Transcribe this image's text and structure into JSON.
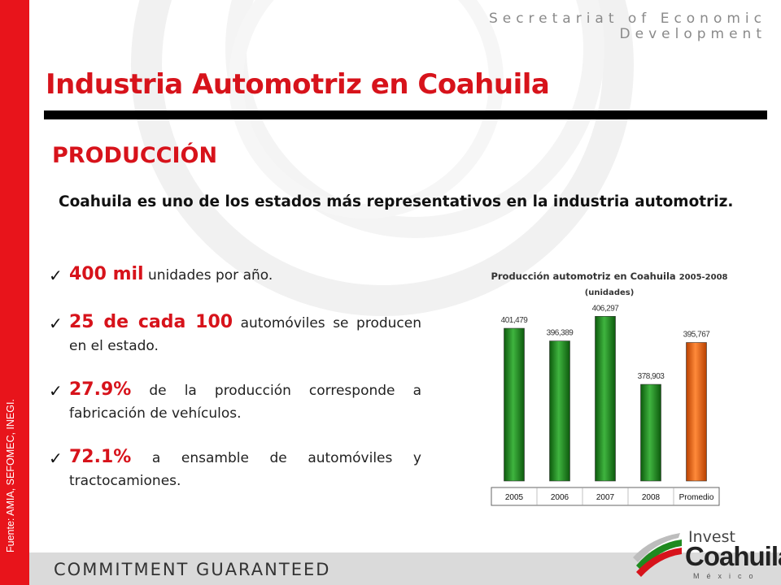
{
  "header": {
    "org_line1": "Secretariat of Economic",
    "org_line2": "Development"
  },
  "title": "Industria Automotriz en Coahuila",
  "section": "PRODUCCIÓN",
  "intro": "Coahuila es uno de los estados más representativos en la industria automotriz.",
  "bullets": [
    {
      "highlight": "400 mil",
      "text": " unidades por año."
    },
    {
      "highlight": "25 de cada 100",
      "text": " automóviles se producen en el estado."
    },
    {
      "highlight": "27.9%",
      "text": " de la producción corresponde a fabricación de vehículos."
    },
    {
      "highlight": "72.1%",
      "text": " a ensamble de automóviles y tractocamiones."
    }
  ],
  "source": "Fuente: AMIA, SEFOMEC, INEGI.",
  "footer": {
    "tagline": "COMMITMENT GUARANTEED"
  },
  "logo": {
    "line1": "Invest",
    "line2": "Coahuila",
    "line3": "México"
  },
  "colors": {
    "accent_red": "#d7131b",
    "bar_green": "#1f8a1f",
    "bar_orange": "#f06010"
  },
  "chart_data": {
    "type": "bar",
    "title": "Producción automotriz en Coahuila",
    "title_years": "2005-2008",
    "subtitle": "(unidades)",
    "categories": [
      "2005",
      "2006",
      "2007",
      "2008",
      "Promedio"
    ],
    "values": [
      401479,
      396389,
      406297,
      378903,
      395767
    ],
    "data_labels": [
      "401,479",
      "396,389",
      "406,297",
      "378,903",
      "395,767"
    ],
    "bar_colors": [
      "green",
      "green",
      "green",
      "green",
      "orange"
    ],
    "ylim": [
      340000,
      410000
    ],
    "grid": false,
    "legend": "none"
  }
}
